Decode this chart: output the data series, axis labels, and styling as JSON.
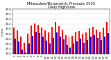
{
  "title": "Milwaukee/Barometric Pressure 2025",
  "subtitle": "Daily High/Low",
  "high_color": "#ff0000",
  "low_color": "#0000ff",
  "background_color": "#ffffff",
  "ylim": [
    29.0,
    30.8
  ],
  "ytick_labels": [
    "29.0",
    "29.2",
    "29.4",
    "29.6",
    "29.8",
    "30.0",
    "30.2",
    "30.4",
    "30.6",
    "30.8"
  ],
  "ytick_vals": [
    29.0,
    29.2,
    29.4,
    29.6,
    29.8,
    30.0,
    30.2,
    30.4,
    30.6,
    30.8
  ],
  "days": [
    "1",
    "2",
    "3",
    "4",
    "5",
    "6",
    "7",
    "8",
    "9",
    "10",
    "11",
    "12",
    "13",
    "14",
    "15",
    "16",
    "17",
    "18",
    "19",
    "20",
    "21",
    "22",
    "23",
    "24",
    "25",
    "26",
    "27",
    "28"
  ],
  "highs": [
    30.05,
    29.95,
    29.7,
    29.45,
    29.8,
    30.15,
    30.22,
    30.18,
    30.05,
    29.95,
    29.85,
    30.08,
    30.28,
    30.12,
    29.98,
    29.75,
    29.68,
    29.72,
    29.88,
    29.92,
    29.8,
    29.85,
    30.02,
    30.08,
    29.98,
    29.9,
    30.05,
    30.28
  ],
  "lows": [
    29.6,
    29.5,
    29.15,
    29.05,
    29.42,
    29.72,
    29.88,
    29.82,
    29.7,
    29.52,
    29.4,
    29.65,
    29.85,
    29.7,
    29.58,
    29.35,
    29.25,
    29.4,
    29.5,
    29.6,
    29.45,
    29.55,
    29.7,
    29.75,
    29.65,
    29.55,
    29.7,
    29.82
  ],
  "title_fontsize": 3.8,
  "tick_fontsize": 2.8,
  "ylabel_fontsize": 2.8,
  "bar_width": 0.4,
  "baseline": 29.0
}
